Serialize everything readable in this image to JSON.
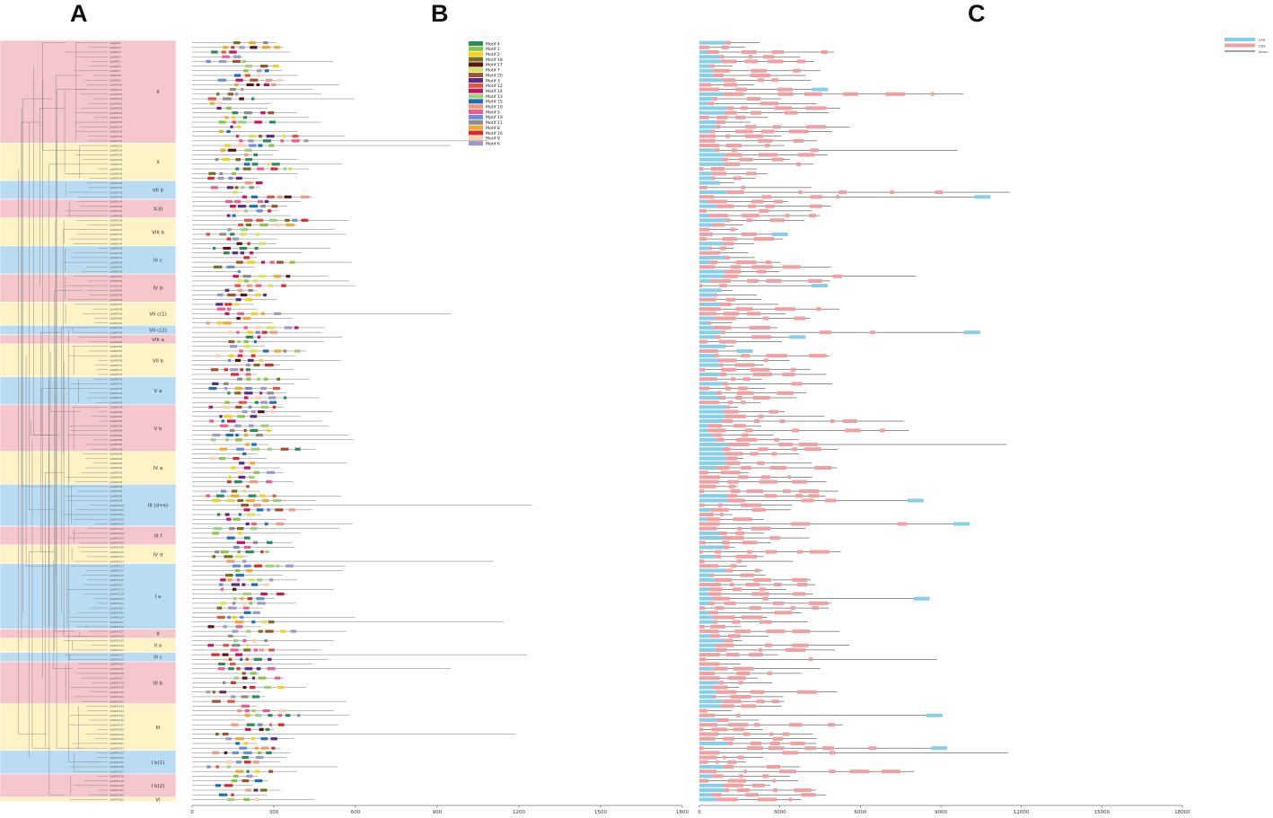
{
  "panels": {
    "a_label": "A",
    "b_label": "B",
    "c_label": "C"
  },
  "subfamilies": [
    {
      "label": "II",
      "color": "pink",
      "count": 22
    },
    {
      "label": "X",
      "color": "yellow",
      "count": 8
    },
    {
      "label": "VII b",
      "color": "blue",
      "count": 4
    },
    {
      "label": "X-III",
      "color": "pink",
      "count": 4
    },
    {
      "label": "VIII b",
      "color": "yellow",
      "count": 6
    },
    {
      "label": "IV c",
      "color": "blue",
      "count": 6
    },
    {
      "label": "IV b",
      "color": "pink",
      "count": 6
    },
    {
      "label": "VII c(1)",
      "color": "yellow",
      "count": 5
    },
    {
      "label": "VII c(2)",
      "color": "blue",
      "count": 2
    },
    {
      "label": "VIII a",
      "color": "pink",
      "count": 2
    },
    {
      "label": "VII b",
      "color": "yellow",
      "count": 7
    },
    {
      "label": "V a",
      "color": "blue",
      "count": 6
    },
    {
      "label": "V b",
      "color": "pink",
      "count": 10
    },
    {
      "label": "IV a",
      "color": "yellow",
      "count": 7
    },
    {
      "label": "III (d+e)",
      "color": "blue",
      "count": 9
    },
    {
      "label": "III f",
      "color": "pink",
      "count": 4
    },
    {
      "label": "IV d",
      "color": "yellow",
      "count": 4
    },
    {
      "label": "I a",
      "color": "blue",
      "count": 14
    },
    {
      "label": "II",
      "color": "pink",
      "count": 2
    },
    {
      "label": "II a",
      "color": "yellow",
      "count": 3
    },
    {
      "label": "III c",
      "color": "blue",
      "count": 2
    },
    {
      "label": "III b",
      "color": "pink",
      "count": 9
    },
    {
      "label": "III",
      "color": "yellow",
      "count": 10
    },
    {
      "label": "I b(1)",
      "color": "blue",
      "count": 5
    },
    {
      "label": "I b(2)",
      "color": "pink",
      "count": 5
    },
    {
      "label": "VI",
      "color": "yellow",
      "count": 1
    }
  ],
  "motif_legend": [
    {
      "name": "Motif 4",
      "color": "#2e8b57"
    },
    {
      "name": "Motif 1",
      "color": "#8bc34a"
    },
    {
      "name": "Motif 2",
      "color": "#f2d21b"
    },
    {
      "name": "Motif 18",
      "color": "#7d6b1e"
    },
    {
      "name": "Motif 17",
      "color": "#5a1414"
    },
    {
      "name": "Motif 7",
      "color": "#d8e25a"
    },
    {
      "name": "Motif 20",
      "color": "#a0522d"
    },
    {
      "name": "Motif 3",
      "color": "#5b2a86"
    },
    {
      "name": "Motif 12",
      "color": "#e0553f"
    },
    {
      "name": "Motif 14",
      "color": "#c2185b"
    },
    {
      "name": "Motif 13",
      "color": "#9fcf7f"
    },
    {
      "name": "Motif 15",
      "color": "#1f6fb5"
    },
    {
      "name": "Motif 10",
      "color": "#ef9a7a"
    },
    {
      "name": "Motif 5",
      "color": "#ec5c8e"
    },
    {
      "name": "Motif 19",
      "color": "#6b8fd6"
    },
    {
      "name": "Motif 11",
      "color": "#8c8c8c"
    },
    {
      "name": "Motif 8",
      "color": "#f0a830"
    },
    {
      "name": "Motif 16",
      "color": "#d72c2c"
    },
    {
      "name": "Motif 9",
      "color": "#ffd0b0"
    },
    {
      "name": "Motif 6",
      "color": "#9b9bc8"
    }
  ],
  "gene_legend": [
    {
      "name": "UTR",
      "color": "#87ceeb"
    },
    {
      "name": "CDS",
      "color": "#f0a0a0"
    },
    {
      "name": "Intron",
      "color": "#000000"
    }
  ],
  "axis_b": {
    "ticks": [
      "0",
      "300",
      "600",
      "900",
      "1200",
      "1500",
      "1800"
    ],
    "max": 1800
  },
  "axis_c": {
    "ticks": [
      "0",
      "3000",
      "6000",
      "9000",
      "12000",
      "15000",
      "18000"
    ],
    "max": 18000
  },
  "colors": {
    "pink": "#f5c6cb",
    "yellow": "#fdf3c4",
    "blue": "#b9dcf3",
    "tree": "#7a7a7a",
    "utr": "#87ceeb",
    "cds": "#f0a0a0"
  },
  "gene_prefix": "CpWRKY"
}
